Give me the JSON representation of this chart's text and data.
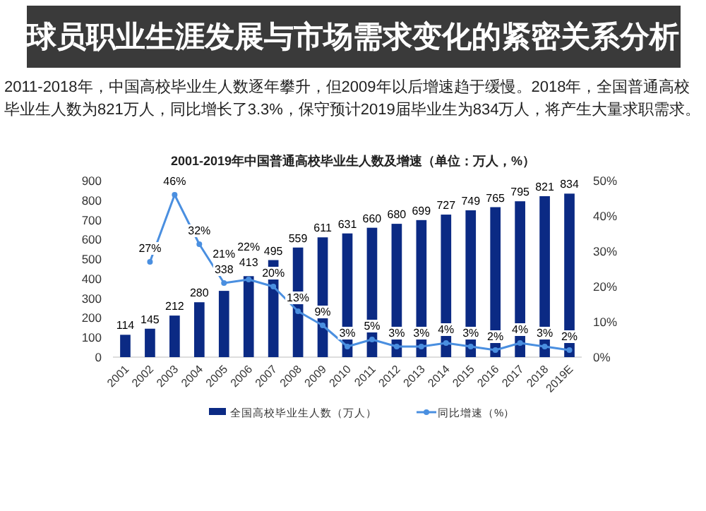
{
  "chart_data": {
    "type": "bar",
    "title": "2001-2019年中国普通高校毕业生人数及增速（单位：万人，%）",
    "annotations": [
      "2011-2018年，中国高校毕业生人数逐年攀升，但2009年以后增速趋于缓慢。2018年，全国普通高校毕业生人数为821万人，同比增长了3.3%，保守预计2019届毕业生为834万人，将产生大量求职需求。",
      "球员职业生涯发展与市场需求变化的紧密关系分析"
    ],
    "categories": [
      "2001",
      "2002",
      "2003",
      "2004",
      "2005",
      "2006",
      "2007",
      "2008",
      "2009",
      "2010",
      "2011",
      "2012",
      "2013",
      "2014",
      "2015",
      "2016",
      "2017",
      "2018",
      "2019E"
    ],
    "series": [
      {
        "name": "全国高校毕业生人数（万人）",
        "color": "#0b2a84",
        "values": [
          114,
          145,
          212,
          280,
          338,
          413,
          495,
          559,
          611,
          631,
          660,
          680,
          699,
          727,
          749,
          765,
          795,
          821,
          834
        ]
      },
      {
        "name": "同比增速（%）",
        "type": "line",
        "axis": "y2",
        "color": "#4a8fe0",
        "values": [
          null,
          27,
          46,
          32,
          21,
          22,
          20,
          13,
          9,
          3,
          5,
          3,
          3,
          4,
          3,
          2,
          4,
          3,
          2
        ],
        "value_labels": [
          null,
          "27%",
          "46%",
          "32%",
          "21%",
          "22%",
          "20%",
          "13%",
          "9%",
          "3%",
          "5%",
          "3%",
          "3%",
          "4%",
          "3%",
          "2%",
          "4%",
          "3%",
          "2%"
        ],
        "marker": "circle"
      }
    ],
    "ylim": [
      0,
      900
    ],
    "yticks": [
      0,
      100,
      200,
      300,
      400,
      500,
      600,
      700,
      800,
      900
    ],
    "y2lim": [
      0,
      50
    ],
    "y2ticks": [
      {
        "value": 0,
        "label": "0%"
      },
      {
        "value": 10,
        "label": "10%"
      },
      {
        "value": 20,
        "label": "20%"
      },
      {
        "value": 30,
        "label": "30%"
      },
      {
        "value": 40,
        "label": "40%"
      },
      {
        "value": 50,
        "label": "50%"
      }
    ],
    "data_labels": true,
    "legend": "bottom"
  }
}
